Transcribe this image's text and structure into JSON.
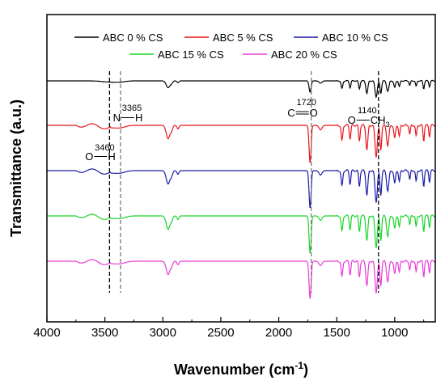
{
  "chart_data": {
    "type": "line",
    "title": "",
    "xlabel": "Wavenumber (cm",
    "xlabel_sup": "-1",
    "xlabel_close": ")",
    "ylabel": "Transmittance (a.u.)",
    "xlim": [
      4000,
      650
    ],
    "x_reversed": true,
    "x_ticks": [
      "4000",
      "3500",
      "3000",
      "2500",
      "2000",
      "1500",
      "1000"
    ],
    "x_tick_values": [
      4000,
      3500,
      3000,
      2500,
      2000,
      1500,
      1000
    ],
    "y_ticks_shown": false,
    "grid": false,
    "legend_position": "top",
    "series": [
      {
        "name": "ABC 0 % CS",
        "color": "#000000"
      },
      {
        "name": "ABC 5 % CS",
        "color": "#e8141b"
      },
      {
        "name": "ABC 10 % CS",
        "color": "#1c1ca8"
      },
      {
        "name": "ABC 15 % CS",
        "color": "#19d62a"
      },
      {
        "name": "ABC 20 % CS",
        "color": "#e83ad9"
      }
    ],
    "reference_lines": [
      {
        "x": 3460,
        "style": "dashed",
        "color": "#000000"
      },
      {
        "x": 3365,
        "style": "dashed",
        "color": "#777777"
      },
      {
        "x": 1720,
        "style": "dashed",
        "color": "#777777"
      },
      {
        "x": 1140,
        "style": "dashed",
        "color": "#000000"
      }
    ],
    "annotations": [
      {
        "x": 3460,
        "number": "3460",
        "bond_left": "O",
        "bond_right": "H"
      },
      {
        "x": 3365,
        "number": "3365",
        "bond_left": "N",
        "bond_right": "H"
      },
      {
        "x": 1720,
        "number": "1720",
        "bond_left": "C",
        "bond_right": "O"
      },
      {
        "x": 1140,
        "number": "1140",
        "bond_left": "O",
        "bond_right": "CH",
        "bond_sub": "3"
      }
    ]
  }
}
